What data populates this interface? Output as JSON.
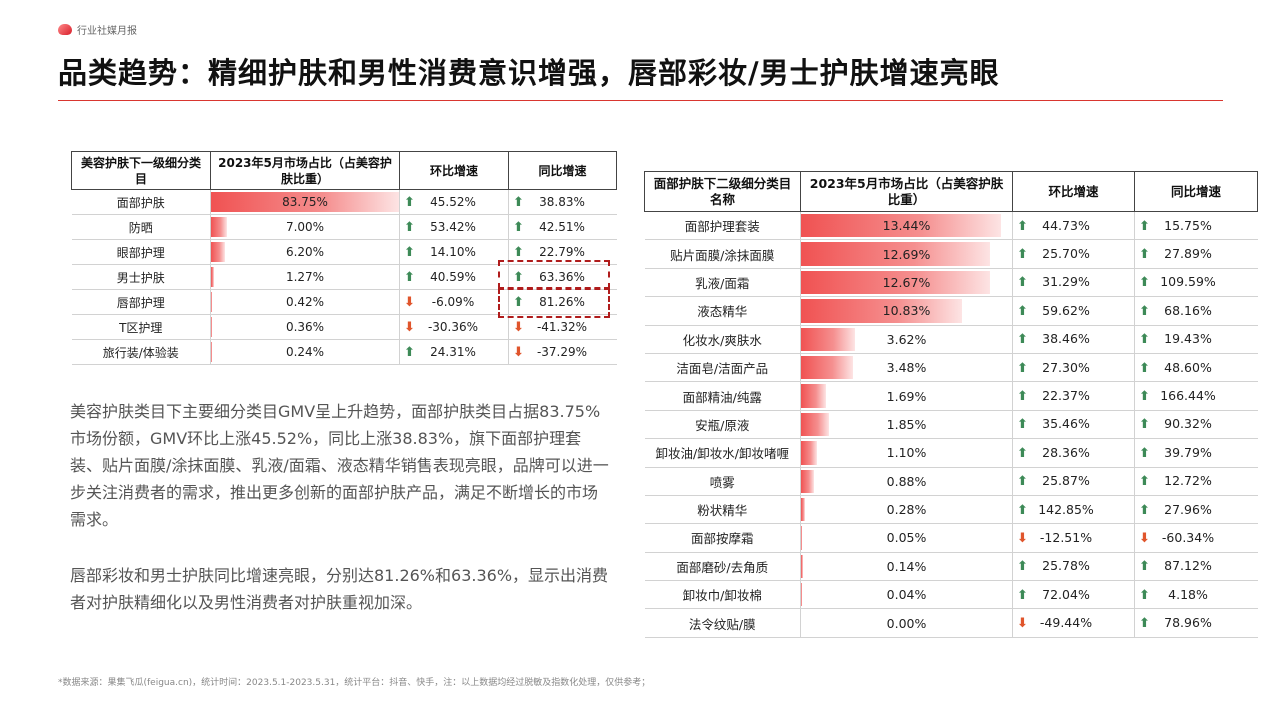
{
  "header": {
    "tag": "行业社媒月报"
  },
  "title": "品类趋势：精细护肤和男性消费意识增强，唇部彩妆/男士护肤增速亮眼",
  "table1": {
    "headers": [
      "美容护肤下一级细分类目",
      "2023年5月市场占比（占美容护肤比重）",
      "环比增速",
      "同比增速"
    ],
    "rows": [
      {
        "name": "面部护肤",
        "share": "83.75%",
        "share_pct": 83.75,
        "mom": "45.52%",
        "mom_dir": "up",
        "yoy": "38.83%",
        "yoy_dir": "up"
      },
      {
        "name": "防晒",
        "share": "7.00%",
        "share_pct": 7.0,
        "mom": "53.42%",
        "mom_dir": "up",
        "yoy": "42.51%",
        "yoy_dir": "up"
      },
      {
        "name": "眼部护理",
        "share": "6.20%",
        "share_pct": 6.2,
        "mom": "14.10%",
        "mom_dir": "up",
        "yoy": "22.79%",
        "yoy_dir": "up"
      },
      {
        "name": "男士护肤",
        "share": "1.27%",
        "share_pct": 1.27,
        "mom": "40.59%",
        "mom_dir": "up",
        "yoy": "63.36%",
        "yoy_dir": "up"
      },
      {
        "name": "唇部护理",
        "share": "0.42%",
        "share_pct": 0.42,
        "mom": "-6.09%",
        "mom_dir": "down",
        "yoy": "81.26%",
        "yoy_dir": "up"
      },
      {
        "name": "T区护理",
        "share": "0.36%",
        "share_pct": 0.36,
        "mom": "-30.36%",
        "mom_dir": "down",
        "yoy": "-41.32%",
        "yoy_dir": "down"
      },
      {
        "name": "旅行装/体验装",
        "share": "0.24%",
        "share_pct": 0.24,
        "mom": "24.31%",
        "mom_dir": "up",
        "yoy": "-37.29%",
        "yoy_dir": "down"
      }
    ]
  },
  "table2": {
    "headers": [
      "面部护肤下二级细分类目名称",
      "2023年5月市场占比（占美容护肤比重）",
      "环比增速",
      "同比增速"
    ],
    "rows": [
      {
        "name": "面部护理套装",
        "share": "13.44%",
        "share_pct": 13.44,
        "mom": "44.73%",
        "mom_dir": "up",
        "yoy": "15.75%",
        "yoy_dir": "up"
      },
      {
        "name": "贴片面膜/涂抹面膜",
        "share": "12.69%",
        "share_pct": 12.69,
        "mom": "25.70%",
        "mom_dir": "up",
        "yoy": "27.89%",
        "yoy_dir": "up"
      },
      {
        "name": "乳液/面霜",
        "share": "12.67%",
        "share_pct": 12.67,
        "mom": "31.29%",
        "mom_dir": "up",
        "yoy": "109.59%",
        "yoy_dir": "up"
      },
      {
        "name": "液态精华",
        "share": "10.83%",
        "share_pct": 10.83,
        "mom": "59.62%",
        "mom_dir": "up",
        "yoy": "68.16%",
        "yoy_dir": "up"
      },
      {
        "name": "化妆水/爽肤水",
        "share": "3.62%",
        "share_pct": 3.62,
        "mom": "38.46%",
        "mom_dir": "up",
        "yoy": "19.43%",
        "yoy_dir": "up"
      },
      {
        "name": "洁面皂/洁面产品",
        "share": "3.48%",
        "share_pct": 3.48,
        "mom": "27.30%",
        "mom_dir": "up",
        "yoy": "48.60%",
        "yoy_dir": "up"
      },
      {
        "name": "面部精油/纯露",
        "share": "1.69%",
        "share_pct": 1.69,
        "mom": "22.37%",
        "mom_dir": "up",
        "yoy": "166.44%",
        "yoy_dir": "up"
      },
      {
        "name": "安瓶/原液",
        "share": "1.85%",
        "share_pct": 1.85,
        "mom": "35.46%",
        "mom_dir": "up",
        "yoy": "90.32%",
        "yoy_dir": "up"
      },
      {
        "name": "卸妆油/卸妆水/卸妆啫喱",
        "share": "1.10%",
        "share_pct": 1.1,
        "mom": "28.36%",
        "mom_dir": "up",
        "yoy": "39.79%",
        "yoy_dir": "up"
      },
      {
        "name": "喷雾",
        "share": "0.88%",
        "share_pct": 0.88,
        "mom": "25.87%",
        "mom_dir": "up",
        "yoy": "12.72%",
        "yoy_dir": "up"
      },
      {
        "name": "粉状精华",
        "share": "0.28%",
        "share_pct": 0.28,
        "mom": "142.85%",
        "mom_dir": "up",
        "yoy": "27.96%",
        "yoy_dir": "up"
      },
      {
        "name": "面部按摩霜",
        "share": "0.05%",
        "share_pct": 0.05,
        "mom": "-12.51%",
        "mom_dir": "down",
        "yoy": "-60.34%",
        "yoy_dir": "down"
      },
      {
        "name": "面部磨砂/去角质",
        "share": "0.14%",
        "share_pct": 0.14,
        "mom": "25.78%",
        "mom_dir": "up",
        "yoy": "87.12%",
        "yoy_dir": "up"
      },
      {
        "name": "卸妆巾/卸妆棉",
        "share": "0.04%",
        "share_pct": 0.04,
        "mom": "72.04%",
        "mom_dir": "up",
        "yoy": "4.18%",
        "yoy_dir": "up"
      },
      {
        "name": "法令纹贴/膜",
        "share": "0.00%",
        "share_pct": 0.0,
        "mom": "-49.44%",
        "mom_dir": "down",
        "yoy": "78.96%",
        "yoy_dir": "up"
      }
    ]
  },
  "paragraph1": "美容护肤类目下主要细分类目GMV呈上升趋势，面部护肤类目占据83.75%市场份额，GMV环比上涨45.52%，同比上涨38.83%，旗下面部护理套装、贴片面膜/涂抹面膜、乳液/面霜、液态精华销售表现亮眼，品牌可以进一步关注消费者的需求，推出更多创新的面部护肤产品，满足不断增长的市场需求。",
  "paragraph2": "唇部彩妆和男士护肤同比增速亮眼，分别达81.26%和63.36%，显示出消费者对护肤精细化以及男性消费者对护肤重视加深。",
  "footnote": "*数据来源：果集飞瓜(feigua.cn)，统计时间：2023.5.1-2023.5.31，统计平台：抖音、快手，注：以上数据均经过脱敏及指数化处理，仅供参考；",
  "colors": {
    "accent": "#d9362f",
    "bar": "#f05252",
    "arrow_up": "#3d8a57",
    "arrow_down": "#e0552c"
  },
  "icons": {
    "up": "arrow-up-icon",
    "down": "arrow-down-icon"
  }
}
